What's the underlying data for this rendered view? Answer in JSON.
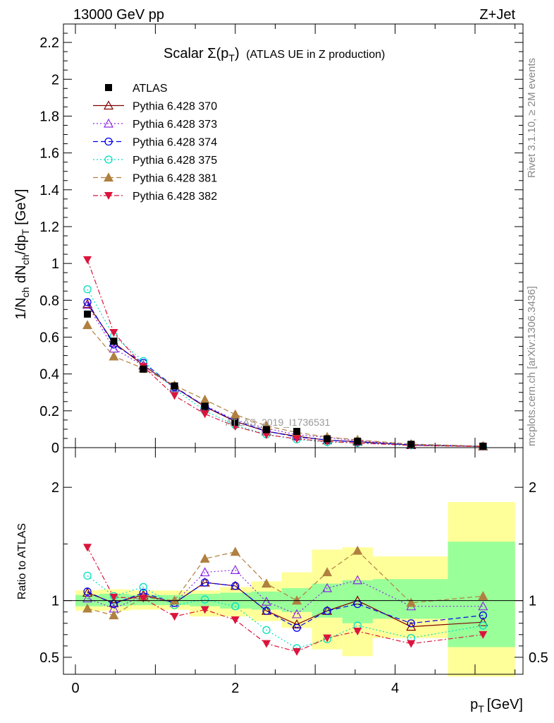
{
  "header": {
    "left": "13000 GeV pp",
    "right": "Z+Jet",
    "side_top": "Rivet 3.1.10, ≥ 2M events",
    "side_bottom": "mcplots.cern.ch [arXiv:1306.3436]"
  },
  "chart_data": {
    "type": "scatter",
    "title_main": "Scalar Σ(p",
    "title_sub": "T",
    "title_after": ")",
    "title_extra": "(ATLAS UE in Z production)",
    "watermark": "ATLAS_2019_I1736531",
    "xlabel": "p",
    "xlabel_sub": "T",
    "xlabel_unit": "[GeV]",
    "ylabel_parts": [
      "1/N",
      "ch",
      " dN",
      "ch",
      "/dp",
      "T",
      " [GeV]"
    ],
    "ratio_ylabel": "Ratio to ATLAS",
    "xlim": [
      -0.15,
      5.6
    ],
    "main_ylim": [
      0,
      2.3
    ],
    "ratio_ylim": [
      0.35,
      2.35
    ],
    "x_ticks": [
      "0",
      "2",
      "4"
    ],
    "main_y_ticks": [
      "0",
      "0.2",
      "0.4",
      "0.6",
      "0.8",
      "1",
      "1.2",
      "1.4",
      "1.6",
      "1.8",
      "2",
      "2.2"
    ],
    "ratio_y_ticks": [
      "0.5",
      "1",
      "2"
    ],
    "x": [
      0.15,
      0.48,
      0.85,
      1.24,
      1.62,
      2.0,
      2.39,
      2.77,
      3.15,
      3.53,
      4.2,
      5.1
    ],
    "x_edges": [
      0.0,
      0.3,
      0.67,
      1.04,
      1.43,
      1.81,
      2.2,
      2.58,
      2.96,
      3.34,
      3.72,
      4.66,
      5.5
    ],
    "atlas": [
      0.725,
      0.578,
      0.426,
      0.335,
      0.225,
      0.138,
      0.098,
      0.088,
      0.048,
      0.035,
      0.018,
      0.008
    ],
    "band_stat": [
      [
        0.95,
        1.05
      ],
      [
        0.95,
        1.06
      ],
      [
        0.96,
        1.05
      ],
      [
        0.96,
        1.05
      ],
      [
        0.95,
        1.06
      ],
      [
        0.93,
        1.07
      ],
      [
        0.92,
        1.08
      ],
      [
        0.9,
        1.11
      ],
      [
        0.85,
        1.15
      ],
      [
        0.8,
        1.18
      ],
      [
        0.84,
        1.19
      ],
      [
        0.59,
        1.52
      ]
    ],
    "band_syst": [
      [
        0.91,
        1.09
      ],
      [
        0.91,
        1.1
      ],
      [
        0.92,
        1.09
      ],
      [
        0.92,
        1.09
      ],
      [
        0.86,
        1.09
      ],
      [
        0.86,
        1.12
      ],
      [
        0.82,
        1.17
      ],
      [
        0.76,
        1.25
      ],
      [
        0.57,
        1.45
      ],
      [
        0.51,
        1.47
      ],
      [
        0.67,
        1.39
      ],
      [
        0.33,
        1.87
      ]
    ],
    "series": [
      {
        "name": "Pythia 6.428 370",
        "color": "#800000",
        "marker": "tri-up-open",
        "dash": "",
        "main": [
          0.78,
          0.57,
          0.448,
          0.328,
          0.222,
          0.142,
          0.088,
          0.062,
          0.04,
          0.033,
          0.014,
          0.0065
        ],
        "ratio": [
          1.07,
          0.98,
          1.05,
          0.98,
          1.16,
          1.13,
          0.91,
          0.79,
          0.91,
          1.0,
          0.77,
          0.81
        ]
      },
      {
        "name": "Pythia 6.428 373",
        "color": "#8a2be2",
        "marker": "tri-up-open",
        "dash": "2 3",
        "main": [
          0.775,
          0.538,
          0.445,
          0.325,
          0.228,
          0.15,
          0.105,
          0.07,
          0.055,
          0.038,
          0.017,
          0.0075
        ],
        "ratio": [
          1.02,
          0.93,
          1.04,
          0.98,
          1.25,
          1.27,
          0.99,
          0.88,
          1.11,
          1.18,
          0.95,
          0.95
        ]
      },
      {
        "name": "Pythia 6.428 374",
        "color": "#0000ee",
        "marker": "circle-open",
        "dash": "7 4",
        "main": [
          0.79,
          0.56,
          0.46,
          0.33,
          0.225,
          0.145,
          0.09,
          0.058,
          0.042,
          0.03,
          0.015,
          0.0068
        ],
        "ratio": [
          1.08,
          0.97,
          1.07,
          0.98,
          1.16,
          1.13,
          0.91,
          0.76,
          0.91,
          0.97,
          0.8,
          0.87
        ]
      },
      {
        "name": "Pythia 6.428 375",
        "color": "#00e0c0",
        "marker": "circle-open",
        "dash": "2 3",
        "main": [
          0.86,
          0.605,
          0.47,
          0.318,
          0.2,
          0.122,
          0.072,
          0.045,
          0.03,
          0.026,
          0.013,
          0.0062
        ],
        "ratio": [
          1.22,
          1.04,
          1.12,
          0.96,
          1.01,
          0.95,
          0.74,
          0.58,
          0.66,
          0.78,
          0.67,
          0.78
        ]
      },
      {
        "name": "Pythia 6.428 381",
        "color": "#b08040",
        "marker": "tri-up-filled",
        "dash": "7 4",
        "main": [
          0.665,
          0.495,
          0.43,
          0.338,
          0.26,
          0.18,
          0.118,
          0.082,
          0.058,
          0.042,
          0.019,
          0.0085
        ],
        "ratio": [
          0.93,
          0.87,
          1.03,
          1.0,
          1.37,
          1.43,
          1.15,
          1.0,
          1.25,
          1.44,
          0.98,
          1.04
        ]
      },
      {
        "name": "Pythia 6.428 382",
        "color": "#dc143c",
        "marker": "tri-down-filled",
        "dash": "7 3 2 3",
        "main": [
          1.02,
          0.625,
          0.44,
          0.282,
          0.183,
          0.115,
          0.07,
          0.048,
          0.033,
          0.025,
          0.012,
          0.0055
        ],
        "ratio": [
          1.47,
          1.03,
          1.02,
          0.86,
          0.92,
          0.83,
          0.62,
          0.55,
          0.67,
          0.73,
          0.62,
          0.7
        ]
      }
    ]
  }
}
